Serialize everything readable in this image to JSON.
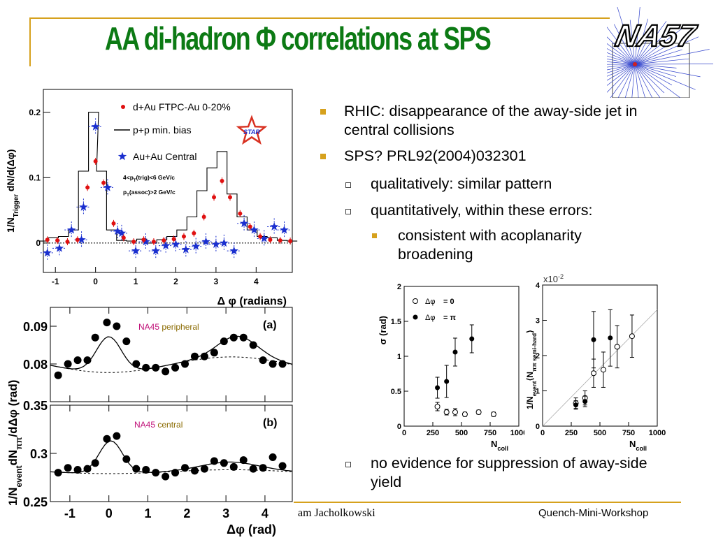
{
  "slide": {
    "title": "AA di-hadron Φ correlations at SPS",
    "logo_text": "NA57",
    "accent_color": "#d6a11d",
    "title_color": "#0c7a14"
  },
  "bullets": [
    {
      "level": 1,
      "text": "RHIC: disappearance of the away-side jet in central collisions"
    },
    {
      "level": 1,
      "text": "SPS? PRL92(2004)032301"
    },
    {
      "level": 2,
      "text": "qualitatively: similar pattern"
    },
    {
      "level": 2,
      "text": "quantitatively, within these errors:"
    },
    {
      "level": 3,
      "text": "consistent with acoplanarity broadening"
    },
    {
      "level": 2,
      "text": "no evidence for suppression of away-side yield"
    }
  ],
  "footer": {
    "author_fragment": "am Jacholkowski",
    "event": "Quench-Mini-Workshop"
  },
  "chart_data": [
    {
      "type": "scatter",
      "panel": "STAR",
      "ylabel": "1/N",
      "ylabel_sub": "Trigger",
      "ylabel_rest": " dN/d(Δφ)",
      "xlabel": "Δ φ (radians)",
      "xlim": [
        -1.3,
        4.9
      ],
      "ylim": [
        -0.045,
        0.235
      ],
      "xticks": [
        "-1",
        "0",
        "1",
        "2",
        "3",
        "4"
      ],
      "yticks": [
        "0",
        "0.1",
        "0.2"
      ],
      "legend": [
        "d+Au FTPC-Au 0-20%",
        "p+p min. bias",
        "Au+Au Central"
      ],
      "logo": "STAR",
      "cuts": [
        "4<p",
        "T",
        "(trig)<6 GeV/c",
        "p",
        "T",
        "(assoc)>2 GeV/c"
      ],
      "series": [
        {
          "name": "d+Au FTPC-Au 0-20%",
          "color": "#e01010",
          "x": [
            -1.2,
            -0.95,
            -0.7,
            -0.45,
            -0.2,
            0.0,
            0.2,
            0.45,
            0.7,
            0.95,
            1.2,
            1.45,
            1.7,
            1.95,
            2.2,
            2.45,
            2.7,
            2.95,
            3.15,
            3.35,
            3.6,
            3.85,
            4.1,
            4.35,
            4.6,
            4.85
          ],
          "y": [
            0.005,
            0.004,
            0.002,
            0.005,
            0.085,
            0.125,
            0.092,
            0.03,
            0.008,
            0.002,
            0.005,
            0.002,
            0.004,
            0.006,
            0.01,
            0.015,
            0.04,
            0.07,
            0.095,
            0.07,
            0.045,
            0.025,
            0.01,
            0.005,
            0.004,
            0.003
          ]
        },
        {
          "name": "p+p min. bias",
          "color": "#000000",
          "x": [
            -1.3,
            -1.05,
            -0.8,
            -0.55,
            -0.3,
            -0.05,
            0.15,
            0.4,
            0.65,
            0.9,
            1.15,
            1.4,
            1.65,
            1.9,
            2.15,
            2.4,
            2.65,
            2.9,
            3.15,
            3.4,
            3.65,
            3.9,
            4.15,
            4.4,
            4.65,
            4.9
          ],
          "y": [
            0.003,
            0.008,
            0.01,
            0.02,
            0.11,
            0.2,
            0.11,
            0.02,
            0.004,
            0.003,
            0.006,
            0.0,
            0.005,
            0.01,
            0.02,
            0.04,
            0.08,
            0.115,
            0.14,
            0.075,
            0.04,
            0.02,
            0.01,
            0.008,
            0.004,
            0.003
          ]
        },
        {
          "name": "Au+Au Central",
          "color": "#1a2fcf",
          "x": [
            -1.2,
            -0.9,
            -0.6,
            -0.35,
            -0.3,
            0.0,
            0.3,
            0.55,
            0.65,
            1.0,
            1.25,
            1.5,
            1.75,
            2.0,
            2.25,
            2.5,
            2.75,
            3.0,
            3.2,
            3.45,
            3.7,
            3.95,
            4.2,
            4.45,
            4.7
          ],
          "y": [
            -0.015,
            -0.008,
            0.02,
            0.005,
            0.055,
            0.178,
            0.085,
            0.018,
            0.015,
            -0.012,
            0.002,
            -0.012,
            -0.004,
            -0.002,
            -0.01,
            -0.005,
            0.002,
            -0.002,
            0.0,
            -0.012,
            0.03,
            0.02,
            0.007,
            0.025,
            0.02
          ]
        }
      ]
    },
    {
      "type": "scatter",
      "panel": "(a)",
      "label_experiment": "NA45",
      "label_class": "peripheral",
      "ylim": [
        0.07,
        0.095
      ],
      "xlim": [
        -1.5,
        4.7
      ],
      "yticks": [
        "0.08",
        "0.09"
      ],
      "x": [
        -1.3,
        -1.05,
        -0.8,
        -0.55,
        -0.35,
        -0.05,
        0.2,
        0.45,
        0.7,
        0.95,
        1.2,
        1.45,
        1.7,
        1.95,
        2.2,
        2.45,
        2.7,
        2.95,
        3.2,
        3.45,
        3.7,
        3.95,
        4.2,
        4.45
      ],
      "y": [
        0.077,
        0.08,
        0.081,
        0.081,
        0.087,
        0.091,
        0.09,
        0.086,
        0.08,
        0.079,
        0.079,
        0.078,
        0.079,
        0.08,
        0.082,
        0.082,
        0.083,
        0.086,
        0.087,
        0.087,
        0.085,
        0.081,
        0.08,
        0.08
      ]
    },
    {
      "type": "scatter",
      "panel": "(b)",
      "label_experiment": "NA45",
      "label_class": "central",
      "xlabel": "Δφ (rad)",
      "ylabel": "1/N",
      "ylabel_sub": "event",
      "ylabel_rest": "dN",
      "ylabel_sub2": "ππ",
      "ylabel_end": "/dΔφ (rad)",
      "xlim": [
        -1.5,
        4.7
      ],
      "ylim": [
        0.25,
        0.35
      ],
      "xticks": [
        "-1",
        "0",
        "1",
        "2",
        "3",
        "4"
      ],
      "yticks": [
        "0.25",
        "0.3",
        "0.35"
      ],
      "x": [
        -1.3,
        -1.05,
        -0.8,
        -0.55,
        -0.35,
        -0.05,
        0.2,
        0.45,
        0.7,
        0.95,
        1.2,
        1.45,
        1.7,
        1.95,
        2.2,
        2.45,
        2.7,
        2.95,
        3.2,
        3.45,
        3.7,
        3.95,
        4.2,
        4.45
      ],
      "y": [
        0.28,
        0.285,
        0.283,
        0.284,
        0.29,
        0.315,
        0.318,
        0.294,
        0.284,
        0.283,
        0.28,
        0.276,
        0.28,
        0.285,
        0.282,
        0.284,
        0.292,
        0.29,
        0.286,
        0.293,
        0.284,
        0.285,
        0.296,
        0.287
      ]
    },
    {
      "type": "scatter",
      "panel": "sigma",
      "xlabel": "N",
      "xlabel_sub": "coll",
      "ylabel": "σ  (rad)",
      "xlim": [
        0,
        1000
      ],
      "ylim": [
        0,
        2
      ],
      "xticks": [
        "0",
        "250",
        "500",
        "750",
        "1000"
      ],
      "yticks": [
        "0",
        "0.5",
        "1",
        "1.5",
        "2"
      ],
      "series": [
        {
          "name": "Δφ = 0",
          "filled": false,
          "x": [
            290,
            370,
            445,
            530,
            650,
            780
          ],
          "y": [
            0.28,
            0.2,
            0.2,
            0.17,
            0.2,
            0.17
          ]
        },
        {
          "name": "Δφ = π",
          "filled": true,
          "x": [
            290,
            370,
            445,
            590
          ],
          "y": [
            0.55,
            0.64,
            1.06,
            1.25
          ]
        }
      ],
      "legend": [
        "Δφ",
        "= 0",
        "Δφ",
        "= π"
      ]
    },
    {
      "type": "scatter",
      "panel": "yield",
      "xlabel": "N",
      "xlabel_sub": "coll",
      "ylabel": "1/N",
      "ylabel_sub": "event",
      "ylabel_rest": "⟨N",
      "ylabel_sub2": "ππ semi-hard",
      "ylabel_end": "⟩",
      "scale": "x10",
      "scale_exp": "-2",
      "xlim": [
        0,
        1000
      ],
      "ylim": [
        0,
        4
      ],
      "xticks": [
        "0",
        "250",
        "500",
        "750",
        "1000"
      ],
      "yticks": [
        "0",
        "1",
        "2",
        "3",
        "4"
      ],
      "series": [
        {
          "name": "Δφ = 0",
          "filled": false,
          "x": [
            290,
            370,
            445,
            530,
            650,
            780
          ],
          "y": [
            0.65,
            0.8,
            1.5,
            1.6,
            2.25,
            2.55
          ]
        },
        {
          "name": "Δφ = π",
          "filled": true,
          "x": [
            290,
            370,
            445,
            590
          ],
          "y": [
            0.6,
            0.7,
            2.45,
            2.5
          ]
        }
      ]
    }
  ]
}
